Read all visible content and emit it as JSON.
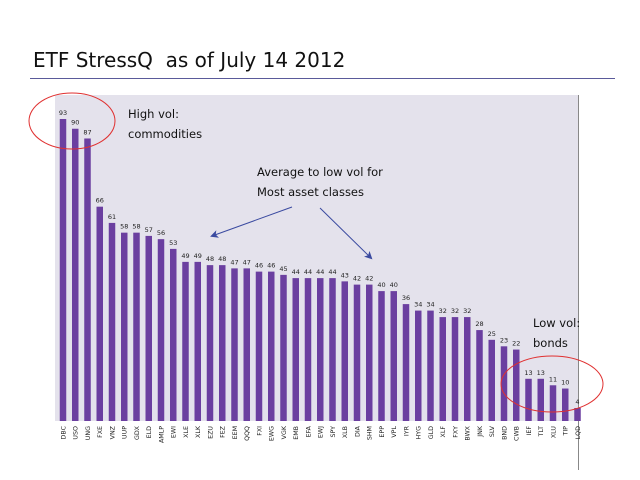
{
  "title": "ETF StressQ  as of July 14 2012",
  "annotations": {
    "high_vol": [
      "High vol:",
      "commodities"
    ],
    "mid_vol": [
      "Average to low vol for",
      "Most asset classes"
    ],
    "low_vol": [
      "Low vol:",
      "bonds"
    ]
  },
  "colors": {
    "bar": "#6b3fa0",
    "plot_background": "#e4e2ec",
    "circle": "#e03030",
    "arrow": "#3a4aa0"
  },
  "chart_data": {
    "type": "bar",
    "categories": [
      "DBC",
      "USO",
      "UNG",
      "FXE",
      "VNZ",
      "UUP",
      "GDX",
      "ELD",
      "AMLP",
      "EWI",
      "XLE",
      "XLK",
      "EZU",
      "FEZ",
      "EEM",
      "QQQ",
      "FXI",
      "EWG",
      "VGK",
      "EMB",
      "EFA",
      "EWJ",
      "SPY",
      "XLB",
      "DIA",
      "SHM",
      "EPP",
      "VPL",
      "IYR",
      "HYG",
      "GLD",
      "XLF",
      "FXY",
      "BWX",
      "JNK",
      "SLV",
      "BND",
      "CWB",
      "IEF",
      "TLT",
      "XLU",
      "TIP",
      "LQD"
    ],
    "values": [
      93,
      90,
      87,
      66,
      61,
      58,
      58,
      57,
      56,
      53,
      49,
      49,
      48,
      48,
      47,
      47,
      46,
      46,
      45,
      44,
      44,
      44,
      44,
      43,
      42,
      42,
      40,
      40,
      36,
      34,
      34,
      32,
      32,
      32,
      28,
      25,
      23,
      22,
      13,
      13,
      11,
      10,
      4
    ],
    "ylim": [
      0,
      100
    ],
    "grid": false,
    "legend": "none"
  }
}
